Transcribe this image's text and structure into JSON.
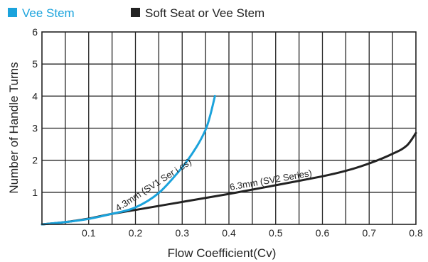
{
  "chart_data": {
    "type": "line",
    "title": "",
    "xlabel": "Flow Coefficient(Cv)",
    "ylabel": "Number of Handle Turns",
    "xlim": [
      0,
      0.8
    ],
    "ylim": [
      0,
      6
    ],
    "x_ticks": [
      "0.1",
      "0.2",
      "0.3",
      "0.4",
      "0.5",
      "0.6",
      "0.7",
      "0.8"
    ],
    "y_ticks": [
      "1",
      "2",
      "3",
      "4",
      "5",
      "6"
    ],
    "grid": true,
    "legend_position": "top-left",
    "series": [
      {
        "name": "Vee Stem",
        "color": "#1ba3dc",
        "points": [
          [
            0,
            0
          ],
          [
            0.05,
            0.07
          ],
          [
            0.1,
            0.17
          ],
          [
            0.15,
            0.33
          ],
          [
            0.2,
            0.53
          ],
          [
            0.25,
            0.98
          ],
          [
            0.3,
            1.78
          ],
          [
            0.33,
            2.4
          ],
          [
            0.35,
            2.95
          ],
          [
            0.36,
            3.4
          ],
          [
            0.37,
            4.0
          ]
        ]
      },
      {
        "name": "Soft Seat or Vee Stem",
        "color": "#222222",
        "points": [
          [
            0,
            0
          ],
          [
            0.05,
            0.07
          ],
          [
            0.1,
            0.18
          ],
          [
            0.15,
            0.33
          ],
          [
            0.2,
            0.45
          ],
          [
            0.3,
            0.7
          ],
          [
            0.4,
            0.95
          ],
          [
            0.5,
            1.22
          ],
          [
            0.6,
            1.5
          ],
          [
            0.65,
            1.67
          ],
          [
            0.7,
            1.9
          ],
          [
            0.75,
            2.2
          ],
          [
            0.78,
            2.45
          ],
          [
            0.8,
            2.85
          ]
        ]
      }
    ],
    "annotations": [
      {
        "text": "4.3mm  (SV1 Ser i es)",
        "series": "Vee Stem"
      },
      {
        "text": "6.3mm  (SV2 Series)",
        "series": "Soft Seat or Vee Stem"
      }
    ]
  }
}
